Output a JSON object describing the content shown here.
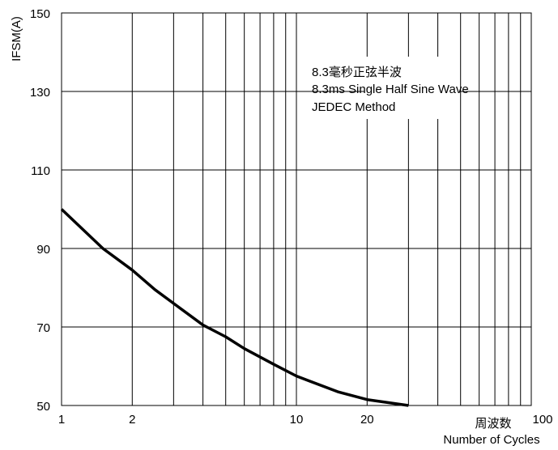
{
  "chart_data": {
    "type": "line",
    "xscale": "log",
    "xlim": [
      1,
      100
    ],
    "ylim": [
      50,
      150
    ],
    "grid": true,
    "ylabel": "IFSM(A)",
    "xlabel_cn": "周波数",
    "xlabel": "Number of Cycles",
    "x_ticks": [
      1,
      2,
      10,
      20,
      100
    ],
    "y_ticks": [
      50,
      70,
      90,
      110,
      130,
      150
    ],
    "annotation": [
      "8.3毫秒正弦半波",
      "8.3ms Single Half Sine Wave",
      "JEDEC Method"
    ],
    "series": [
      {
        "x": [
          1,
          1.5,
          2,
          2.5,
          3,
          4,
          5,
          6,
          8,
          10,
          15,
          20,
          30
        ],
        "y": [
          100,
          90,
          84.5,
          79.5,
          76,
          70.5,
          67.5,
          64.5,
          60.5,
          57.5,
          53.5,
          51.5,
          50
        ]
      }
    ],
    "colors": {
      "line": "#000000",
      "grid": "#000000"
    }
  }
}
